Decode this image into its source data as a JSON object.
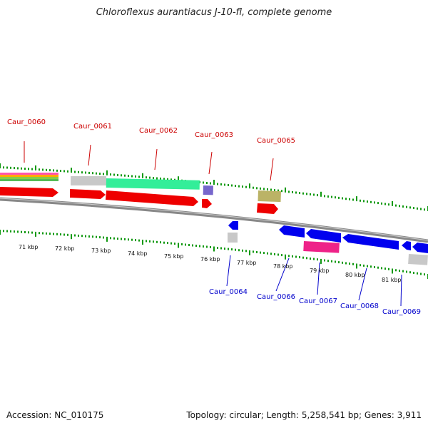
{
  "title": "Chloroflexus aurantiacus J-10-fl, complete genome",
  "footer": {
    "accession": "Accession: NC_010175",
    "genome_info": "Topology: circular; Length: 5,258,541 bp; Genes: 3,911"
  },
  "colors": {
    "forward_label": "#cc0000",
    "reverse_label": "#0000cc",
    "cds_forward": "#ee0000",
    "cds_reverse": "#0000ee",
    "tick": "#119911",
    "backbone": "#888888"
  },
  "scale_labels": [
    "71 kbp",
    "72 kbp",
    "73 kbp",
    "74 kbp",
    "75 kbp",
    "76 kbp",
    "77 kbp",
    "78 kbp",
    "79 kbp",
    "80 kbp",
    "81 kbp"
  ],
  "gene_labels": {
    "forward": [
      "Caur_0060",
      "Caur_0061",
      "Caur_0062",
      "Caur_0063",
      "Caur_0065"
    ],
    "reverse": [
      "Caur_0064",
      "Caur_0066",
      "Caur_0067",
      "Caur_0068",
      "Caur_0069"
    ]
  }
}
